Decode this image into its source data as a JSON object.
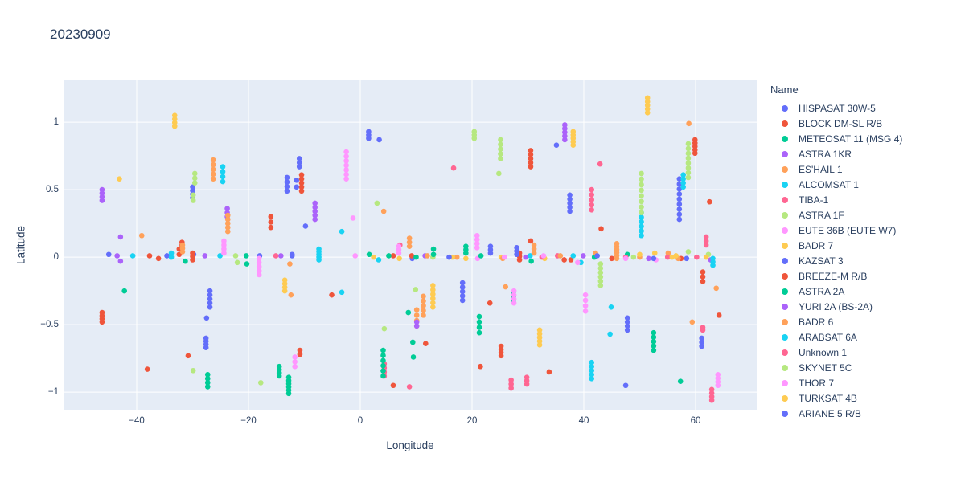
{
  "title": "20230909",
  "colors": {
    "text": "#2a3f5f",
    "grid": "#ffffff",
    "paper": "#ffffff",
    "plot_bg": "#E5ECF6"
  },
  "chart_data": {
    "type": "scatter",
    "title": "20230909",
    "xlabel": "Longitude",
    "ylabel": "Latitude",
    "legend_title": "Name",
    "legend_position": "right",
    "grid": true,
    "xlim": [
      -52.95,
      70.94
    ],
    "ylim": [
      -1.13,
      1.31
    ],
    "xticks": [
      {
        "v": -40,
        "label": "−40"
      },
      {
        "v": -20,
        "label": "−20"
      },
      {
        "v": 0,
        "label": "0"
      },
      {
        "v": 20,
        "label": "20"
      },
      {
        "v": 40,
        "label": "40"
      },
      {
        "v": 60,
        "label": "60"
      }
    ],
    "yticks": [
      {
        "v": -1,
        "label": "−1"
      },
      {
        "v": -0.5,
        "label": "−0.5"
      },
      {
        "v": 0,
        "label": "0"
      },
      {
        "v": 0.5,
        "label": "0.5"
      },
      {
        "v": 1,
        "label": "1"
      }
    ],
    "marker_radius": 3.3,
    "series": [
      {
        "name": "HISPASAT 30W-5",
        "color": "#636EFA",
        "points": [
          [
            -30.0,
            0.44,
            0.52,
            4
          ],
          [
            -29.8,
            0.02
          ],
          [
            -34.6,
            0.01
          ],
          [
            -26.9,
            -0.37,
            -0.25,
            5
          ],
          [
            -27.5,
            -0.45
          ],
          [
            -27.6,
            -0.67,
            -0.6,
            4
          ],
          [
            -13.1,
            0.49,
            0.59,
            4
          ],
          [
            -11.4,
            0.52,
            0.57,
            2
          ],
          [
            -10.9,
            0.67,
            0.73,
            3
          ],
          [
            -12.2,
            0.01,
            0.02,
            2
          ],
          [
            -9.8,
            0.23
          ],
          [
            -18.0,
            0.01
          ]
        ]
      },
      {
        "name": "BLOCK DM-SL R/B",
        "color": "#EF553B",
        "points": [
          [
            -46.2,
            -0.48,
            -0.41,
            4
          ],
          [
            -38.1,
            -0.83
          ],
          [
            -37.7,
            0.01
          ],
          [
            -36.1,
            -0.01
          ],
          [
            -32.4,
            0.02,
            0.06,
            2
          ],
          [
            -31.9,
            0.07,
            0.11,
            3
          ],
          [
            -30.8,
            -0.73
          ],
          [
            -30.0,
            -0.02,
            0.03,
            3
          ],
          [
            -16.0,
            0.22,
            0.3,
            3
          ],
          [
            -10.8,
            -0.72,
            -0.69,
            2
          ],
          [
            -10.5,
            0.49,
            0.61,
            5
          ],
          [
            -5.1,
            -0.28
          ],
          [
            5.9,
            -0.95
          ],
          [
            5.9,
            0.01
          ]
        ]
      },
      {
        "name": "METEOSAT 11 (MSG 4)",
        "color": "#00CC96",
        "points": [
          [
            -42.2,
            -0.25
          ],
          [
            -31.3,
            -0.03
          ],
          [
            -27.3,
            -0.96,
            -0.87,
            4
          ],
          [
            -20.4,
            0.01
          ],
          [
            -20.3,
            -0.05
          ],
          [
            -14.5,
            -0.88,
            -0.81,
            4
          ],
          [
            -12.8,
            -1.01,
            -0.89,
            6
          ],
          [
            1.6,
            0.02
          ],
          [
            5.1,
            0.01
          ],
          [
            8.6,
            -0.41
          ]
        ]
      },
      {
        "name": "ASTRA 1KR",
        "color": "#AB63FA",
        "points": [
          [
            -46.2,
            0.42,
            0.5,
            4
          ],
          [
            -43.5,
            0.01
          ],
          [
            -42.9,
            -0.03
          ],
          [
            -42.9,
            0.15
          ],
          [
            -27.8,
            0.01
          ],
          [
            -23.8,
            0.3,
            0.36,
            3
          ],
          [
            -14.2,
            0.01
          ],
          [
            -8.1,
            0.28,
            0.4,
            5
          ],
          [
            11.6,
            0.01
          ]
        ]
      },
      {
        "name": "ES'HAIL 1",
        "color": "#FFA15A",
        "points": [
          [
            -39.1,
            0.16
          ],
          [
            -31.8,
            0.04,
            0.09,
            3
          ],
          [
            -26.3,
            0.58,
            0.72,
            5
          ],
          [
            -23.7,
            0.19,
            0.31,
            5
          ],
          [
            -12.6,
            -0.05
          ],
          [
            -12.4,
            -0.28
          ],
          [
            4.2,
            0.34
          ],
          [
            8.8,
            0.08,
            0.14,
            3
          ],
          [
            11.3,
            -0.43,
            -0.29,
            5
          ],
          [
            10.1,
            -0.51,
            -0.39,
            4
          ],
          [
            12.0,
            0.01
          ],
          [
            17.3,
            0.0
          ]
        ]
      },
      {
        "name": "ALCOMSAT 1",
        "color": "#19D3F3",
        "points": [
          [
            -40.7,
            0.01
          ],
          [
            -33.8,
            0.0,
            0.03,
            2
          ],
          [
            -25.1,
            0.01
          ],
          [
            -24.6,
            0.56,
            0.67,
            4
          ],
          [
            -7.4,
            -0.02,
            0.06,
            5
          ],
          [
            -3.3,
            0.19
          ],
          [
            -3.3,
            -0.26
          ],
          [
            3.3,
            -0.02
          ]
        ]
      },
      {
        "name": "TIBA-1",
        "color": "#FF6692",
        "points": [
          [
            -15.1,
            0.01
          ],
          [
            4.3,
            -0.88,
            -0.79,
            4
          ],
          [
            7.1,
            0.09
          ],
          [
            8.8,
            -0.96
          ],
          [
            16.7,
            0.66
          ],
          [
            41.4,
            0.35,
            0.5,
            5
          ],
          [
            42.9,
            0.69
          ],
          [
            35.3,
            0.01
          ]
        ]
      },
      {
        "name": "ASTRA 1F",
        "color": "#B6E880",
        "points": [
          [
            -29.6,
            0.55,
            0.62,
            3
          ],
          [
            -29.9,
            0.42,
            0.46,
            2
          ],
          [
            -29.9,
            -0.84
          ],
          [
            -22.3,
            0.01
          ],
          [
            -22.0,
            -0.04
          ],
          [
            -17.8,
            -0.93
          ],
          [
            3.0,
            0.4
          ],
          [
            4.3,
            -0.53
          ],
          [
            9.9,
            -0.24
          ],
          [
            13.0,
            0.0
          ]
        ]
      },
      {
        "name": "EUTE 36B (EUTE W7)",
        "color": "#FF97FF",
        "points": [
          [
            -24.4,
            0.03,
            0.12,
            4
          ],
          [
            -18.1,
            -0.13,
            -0.01,
            5
          ],
          [
            -11.7,
            -0.81,
            -0.74,
            3
          ],
          [
            -2.5,
            0.58,
            0.78,
            7
          ],
          [
            -1.3,
            0.29
          ],
          [
            -0.9,
            0.01
          ],
          [
            6.9,
            0.03,
            0.08,
            3
          ],
          [
            20.9,
            0.07,
            0.16,
            4
          ],
          [
            21.0,
            -0.01
          ]
        ]
      },
      {
        "name": "BADR 7",
        "color": "#FECB52",
        "points": [
          [
            -43.1,
            0.58
          ],
          [
            -33.2,
            0.97,
            1.05,
            4
          ],
          [
            -13.5,
            -0.25,
            -0.17,
            4
          ],
          [
            2.4,
            0.0
          ],
          [
            7.0,
            -0.01
          ],
          [
            13.0,
            -0.37,
            -0.21,
            6
          ],
          [
            16.5,
            0.0
          ],
          [
            18.9,
            -0.01
          ],
          [
            25.2,
            0.0
          ],
          [
            33.0,
            -0.01
          ]
        ]
      },
      {
        "name": "KAZSAT 3",
        "color": "#636EFA",
        "points": [
          [
            57.1,
            0.28,
            0.58,
            9
          ],
          [
            58.4,
            -0.01
          ],
          [
            15.9,
            0.0
          ],
          [
            18.3,
            -0.32,
            -0.19,
            5
          ],
          [
            9.3,
            -0.01
          ]
        ]
      },
      {
        "name": "BREEZE-M R/B",
        "color": "#EF553B",
        "points": [
          [
            9.2,
            0.01
          ],
          [
            11.7,
            -0.64
          ],
          [
            21.5,
            -0.81
          ],
          [
            23.2,
            -0.34
          ],
          [
            25.2,
            -0.73,
            -0.66,
            4
          ],
          [
            28.5,
            -0.02,
            0.03,
            3
          ],
          [
            30.5,
            0.12
          ],
          [
            30.5,
            0.67,
            0.79,
            5
          ],
          [
            33.8,
            -0.85
          ],
          [
            36.5,
            -0.02
          ],
          [
            37.7,
            -0.02
          ],
          [
            43.1,
            0.21
          ],
          [
            45.0,
            -0.01
          ],
          [
            57.4,
            -0.01
          ],
          [
            59.9,
            0.77,
            0.87,
            5
          ],
          [
            61.3,
            -0.18,
            -0.11,
            3
          ],
          [
            62.5,
            0.41
          ],
          [
            64.2,
            -0.43
          ]
        ]
      },
      {
        "name": "ASTRA 2A",
        "color": "#00CC96",
        "points": [
          [
            10.0,
            0.0
          ],
          [
            9.4,
            -0.63
          ],
          [
            9.5,
            -0.74
          ],
          [
            4.1,
            -0.88,
            -0.69,
            6
          ],
          [
            13.1,
            0.02,
            0.06,
            2
          ],
          [
            18.9,
            0.03,
            0.08,
            3
          ],
          [
            21.6,
            0.01
          ],
          [
            21.3,
            -0.56,
            -0.44,
            4
          ],
          [
            27.4,
            -0.33,
            -0.26,
            3
          ],
          [
            30.6,
            -0.03
          ],
          [
            41.9,
            0.0
          ],
          [
            47.8,
            0.02
          ],
          [
            52.5,
            -0.69,
            -0.56,
            5
          ],
          [
            57.3,
            -0.92
          ]
        ]
      },
      {
        "name": "YURI 2A (BS-2A)",
        "color": "#AB63FA",
        "points": [
          [
            29.6,
            0.0
          ],
          [
            36.6,
            0.87,
            0.98,
            5
          ],
          [
            39.9,
            0.01
          ],
          [
            51.6,
            -0.01
          ],
          [
            62.7,
            -0.02
          ],
          [
            10.1,
            -0.51,
            -0.48,
            2
          ]
        ]
      },
      {
        "name": "BADR 6",
        "color": "#FFA15A",
        "points": [
          [
            25.5,
            -0.01
          ],
          [
            26.0,
            -0.22
          ],
          [
            31.1,
            0.03,
            0.09,
            3
          ],
          [
            35.8,
            0.01
          ],
          [
            42.1,
            0.03
          ],
          [
            45.9,
            -0.01,
            0.1,
            6
          ],
          [
            50.0,
            0.0
          ],
          [
            55.1,
            0.03
          ],
          [
            56.9,
            -0.01
          ],
          [
            58.8,
            0.99
          ],
          [
            59.4,
            -0.48
          ],
          [
            63.7,
            -0.23
          ]
        ]
      },
      {
        "name": "ARABSAT 6A",
        "color": "#19D3F3",
        "points": [
          [
            30.4,
            0.01
          ],
          [
            38.1,
            0.01
          ],
          [
            39.5,
            -0.04
          ],
          [
            41.4,
            -0.9,
            -0.78,
            5
          ],
          [
            44.9,
            -0.37
          ],
          [
            44.7,
            -0.57
          ],
          [
            50.3,
            0.16,
            0.33,
            6
          ],
          [
            57.8,
            0.52,
            0.61,
            4
          ],
          [
            63.1,
            -0.06,
            -0.01,
            3
          ]
        ]
      },
      {
        "name": "Unknown 1",
        "color": "#FF6692",
        "points": [
          [
            27.0,
            -0.97,
            -0.91,
            3
          ],
          [
            29.8,
            -0.94,
            -0.89,
            3
          ],
          [
            32.5,
            0.0
          ],
          [
            47.5,
            0.0
          ],
          [
            55.0,
            0.0
          ],
          [
            60.2,
            0.0
          ],
          [
            61.9,
            0.09,
            0.15,
            3
          ],
          [
            61.3,
            -0.54,
            -0.52,
            2
          ],
          [
            62.9,
            -1.06,
            -0.98,
            4
          ]
        ]
      },
      {
        "name": "SKYNET 5C",
        "color": "#B6E880",
        "points": [
          [
            20.4,
            0.88,
            0.93,
            3
          ],
          [
            25.1,
            0.73,
            0.87,
            5
          ],
          [
            24.8,
            0.62
          ],
          [
            43.0,
            -0.21,
            -0.05,
            6
          ],
          [
            48.9,
            0.0
          ],
          [
            50.3,
            0.33,
            0.62,
            8
          ],
          [
            58.7,
            0.59,
            0.84,
            8
          ],
          [
            58.7,
            0.04
          ],
          [
            62.3,
            0.02
          ]
        ]
      },
      {
        "name": "THOR 7",
        "color": "#FF97FF",
        "points": [
          [
            25.8,
            0.0
          ],
          [
            27.5,
            -0.34,
            -0.25,
            4
          ],
          [
            32.8,
            0.01
          ],
          [
            38.9,
            -0.04
          ],
          [
            40.3,
            -0.4,
            -0.28,
            4
          ],
          [
            47.5,
            -0.01
          ],
          [
            52.9,
            -0.02
          ],
          [
            64.0,
            -0.95,
            -0.87,
            4
          ]
        ]
      },
      {
        "name": "TURKSAT 4B",
        "color": "#FECB52",
        "points": [
          [
            32.1,
            -0.65,
            -0.54,
            5
          ],
          [
            38.1,
            0.83,
            0.93,
            5
          ],
          [
            50.0,
            0.02
          ],
          [
            51.4,
            1.07,
            1.18,
            5
          ],
          [
            52.7,
            0.03
          ],
          [
            55.8,
            0.0
          ],
          [
            56.5,
            0.01
          ],
          [
            61.9,
            0.0
          ]
        ]
      },
      {
        "name": "ARIANE 5 R/B",
        "color": "#636EFA",
        "points": [
          [
            -45.0,
            0.02
          ],
          [
            1.5,
            0.88,
            0.93,
            3
          ],
          [
            3.4,
            0.87
          ],
          [
            23.3,
            0.03,
            0.08,
            3
          ],
          [
            28.0,
            0.02,
            0.07,
            3
          ],
          [
            35.1,
            0.83
          ],
          [
            37.5,
            0.34,
            0.46,
            5
          ],
          [
            42.4,
            0.01
          ],
          [
            47.8,
            -0.54,
            -0.45,
            4
          ],
          [
            47.5,
            -0.95
          ],
          [
            52.5,
            -0.01
          ],
          [
            61.1,
            -0.66,
            -0.6,
            3
          ]
        ]
      }
    ]
  }
}
